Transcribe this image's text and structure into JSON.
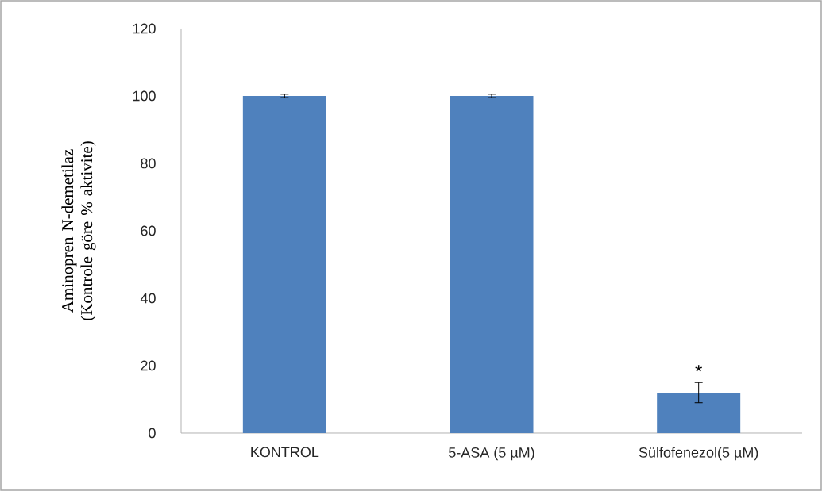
{
  "chart_data": {
    "type": "bar",
    "ylabel": "Aminopren N-demetilaz (Kontrole göre % aktivite)",
    "categories": [
      "KONTROL",
      "5-ASA (5 µM)",
      "Sülfofenezol(5 µM)"
    ],
    "values": [
      100,
      100,
      12
    ],
    "errors": [
      0.5,
      0.5,
      3
    ],
    "color": "#4f81bd",
    "ylim": [
      0,
      120
    ],
    "yticks": [
      0,
      20,
      40,
      60,
      80,
      100,
      120
    ],
    "grid": false,
    "annotations": [
      "*"
    ]
  }
}
